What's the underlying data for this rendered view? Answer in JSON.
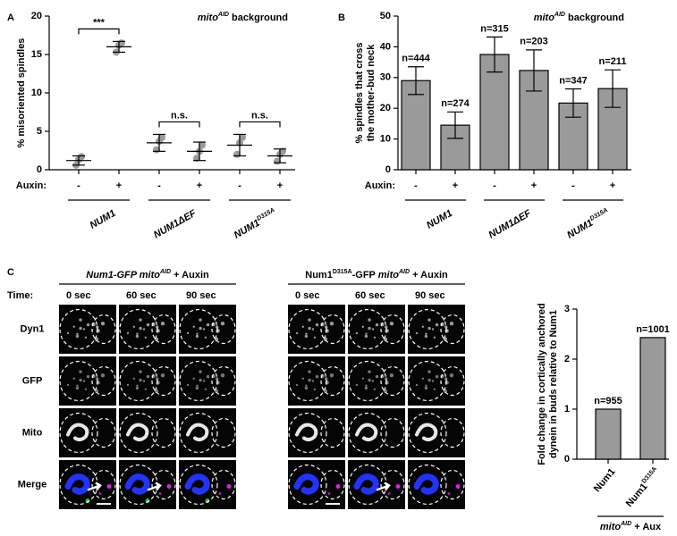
{
  "chart_data": [
    {
      "panel": "A",
      "type": "dot",
      "ylabel": [
        "% misoriented spindles"
      ],
      "annotation": [
        {
          "text": "mito",
          "italic": true
        },
        {
          "text": "AID",
          "sup": true,
          "italic": true
        },
        {
          "text": " background"
        }
      ],
      "row_label": "Auxin:",
      "categories": [
        "-",
        "+",
        "-",
        "+",
        "-",
        "+"
      ],
      "groups": [
        [
          {
            "text": "NUM1",
            "italic": true
          }
        ],
        [
          {
            "text": "NUM1ΔEF",
            "italic": true
          }
        ],
        [
          {
            "text": "NUM1",
            "italic": true
          },
          {
            "text": "D315A",
            "sup": true,
            "italic": true
          }
        ]
      ],
      "values": [
        1.2,
        16,
        3.5,
        2.4,
        3.2,
        1.8
      ],
      "errors": [
        0.6,
        0.7,
        1.1,
        1.2,
        1.4,
        0.9
      ],
      "points": [
        [
          0.6,
          1.3,
          1.7
        ],
        [
          15.3,
          16.2,
          16.5
        ],
        [
          2.6,
          3.7,
          4.2
        ],
        [
          1.5,
          2.4,
          3.2
        ],
        [
          2.0,
          3.5,
          4.2
        ],
        [
          1.1,
          2.0,
          2.4
        ]
      ],
      "brackets": [
        "***",
        "n.s.",
        "n.s."
      ],
      "color": "#9a9a9a",
      "ylim": [
        0,
        20
      ],
      "yticks": [
        0,
        5,
        10,
        15,
        20
      ]
    },
    {
      "panel": "B",
      "type": "bar",
      "ylabel": [
        "% spindles that cross",
        "the mother-bud neck"
      ],
      "annotation": [
        {
          "text": "mito",
          "italic": true
        },
        {
          "text": "AID",
          "sup": true,
          "italic": true
        },
        {
          "text": " background"
        }
      ],
      "row_label": "Auxin:",
      "categories": [
        "-",
        "+",
        "-",
        "+",
        "-",
        "+"
      ],
      "groups": [
        [
          {
            "text": "NUM1",
            "italic": true
          }
        ],
        [
          {
            "text": "NUM1ΔEF",
            "italic": true
          }
        ],
        [
          {
            "text": "NUM1",
            "italic": true
          },
          {
            "text": "D315A",
            "sup": true,
            "italic": true
          }
        ]
      ],
      "values": [
        29.0,
        14.5,
        37.5,
        32.3,
        21.7,
        26.4
      ],
      "errors": [
        4.5,
        4.3,
        5.7,
        6.7,
        4.6,
        6.1
      ],
      "n_labels": [
        "n=444",
        "n=274",
        "n=315",
        "n=203",
        "n=347",
        "n=211"
      ],
      "color": "#9a9a9a",
      "ylim": [
        0,
        50
      ],
      "yticks": [
        0,
        10,
        20,
        30,
        40,
        50
      ]
    },
    {
      "type": "bar",
      "ylabel": [
        "Fold change in cortically anchored",
        "dynein in buds relative to Num1"
      ],
      "categories": [
        [
          {
            "text": "Num1"
          }
        ],
        [
          {
            "text": "Num1"
          },
          {
            "text": "D315A",
            "sup": true
          }
        ]
      ],
      "groups": [
        [
          {
            "text": "mito",
            "italic": true
          },
          {
            "text": "AID",
            "sup": true,
            "italic": true
          },
          {
            "text": " + Aux"
          }
        ]
      ],
      "values": [
        1,
        2.43
      ],
      "n_labels": [
        "n=955",
        "n=1001"
      ],
      "color": "#9a9a9a",
      "ylim": [
        0,
        3
      ],
      "yticks": [
        0,
        1,
        2,
        3
      ]
    }
  ],
  "microscopy": {
    "panel": "C",
    "time_label": "Time:",
    "groups": [
      {
        "title": [
          {
            "text": "Num1-GFP mito",
            "italic": true
          },
          {
            "text": "AID",
            "sup": true,
            "italic": true
          },
          {
            "text": " + Auxin"
          }
        ],
        "times": [
          "0 sec",
          "60 sec",
          "90 sec"
        ]
      },
      {
        "title": [
          {
            "text": "Num1"
          },
          {
            "text": "D315A",
            "sup": true
          },
          {
            "text": "-GFP "
          },
          {
            "text": "mito",
            "italic": true
          },
          {
            "text": "AID",
            "sup": true,
            "italic": true
          },
          {
            "text": " + Auxin"
          }
        ],
        "times": [
          "0 sec",
          "60 sec",
          "90 sec"
        ]
      }
    ],
    "rows": [
      "Dyn1",
      "GFP",
      "Mito",
      "Merge"
    ],
    "row_colors": [
      "#d21fd2",
      "#2aa12a",
      "#1a1aff",
      "#000000"
    ]
  }
}
